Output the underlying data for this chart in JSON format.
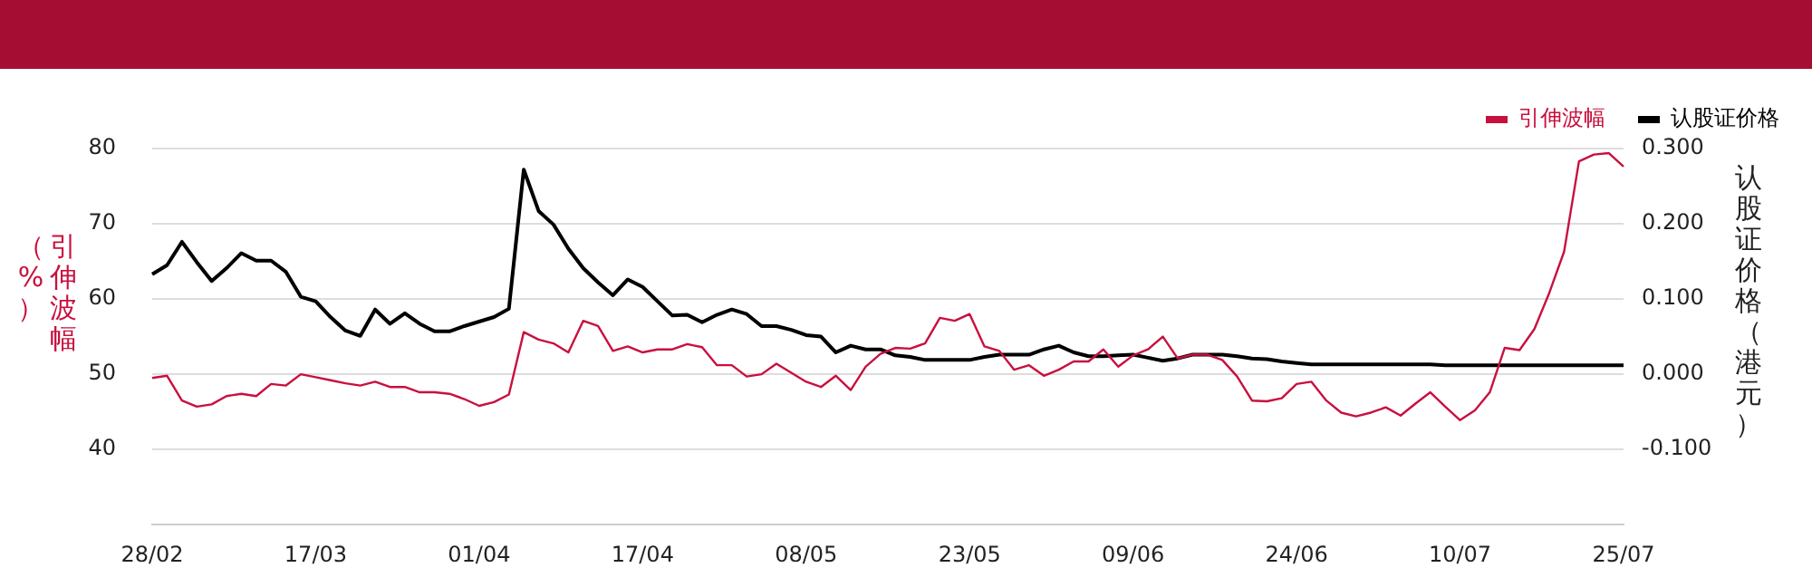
{
  "chart_data": {
    "type": "line",
    "ylabel": "引伸波幅（%）",
    "y2label": "认股证价格（港元）",
    "categories": [
      "28/02",
      null,
      null,
      null,
      null,
      null,
      null,
      null,
      null,
      null,
      null,
      "17/03",
      null,
      null,
      null,
      null,
      null,
      null,
      null,
      null,
      null,
      null,
      "01/04",
      null,
      null,
      null,
      null,
      null,
      null,
      null,
      null,
      null,
      null,
      "17/04",
      null,
      null,
      null,
      null,
      null,
      null,
      null,
      null,
      null,
      null,
      "08/05",
      null,
      null,
      null,
      null,
      null,
      null,
      null,
      null,
      null,
      null,
      "23/05",
      null,
      null,
      null,
      null,
      null,
      null,
      null,
      null,
      null,
      null,
      "09/06",
      null,
      null,
      null,
      null,
      null,
      null,
      null,
      null,
      null,
      null,
      "24/06",
      null,
      null,
      null,
      null,
      null,
      null,
      null,
      null,
      null,
      null,
      "10/07",
      null,
      null,
      null,
      null,
      null,
      null,
      null,
      null,
      null,
      null,
      "25/07"
    ],
    "series": [
      {
        "name": "引伸波幅",
        "color": "#c8103e",
        "values": [
          49.5,
          49.8,
          46.5,
          45.7,
          46.0,
          47.1,
          47.4,
          47.1,
          48.7,
          48.5,
          50.0,
          49.6,
          49.2,
          48.8,
          48.5,
          49.0,
          48.3,
          48.3,
          47.6,
          47.6,
          47.4,
          46.7,
          45.8,
          46.3,
          47.3,
          55.6,
          54.6,
          54.1,
          52.9,
          57.1,
          56.4,
          53.1,
          53.7,
          52.9,
          53.3,
          53.3,
          54.0,
          53.6,
          51.2,
          51.2,
          49.7,
          50.0,
          51.4,
          50.2,
          49.0,
          48.3,
          49.8,
          47.9,
          51.0,
          52.7,
          53.5,
          53.4,
          54.1,
          57.5,
          57.1,
          58.0,
          53.7,
          53.1,
          50.6,
          51.2,
          49.8,
          50.6,
          51.7,
          51.7,
          53.3,
          51.0,
          52.5,
          53.3,
          55.0,
          52.1,
          52.6,
          52.6,
          51.9,
          49.7,
          46.5,
          46.4,
          46.8,
          48.7,
          49.0,
          46.5,
          44.9,
          44.4,
          44.9,
          45.6,
          44.5,
          46.1,
          47.6,
          45.7,
          43.9,
          45.2,
          47.6,
          53.5,
          53.2,
          56.0,
          60.8,
          66.3,
          78.3,
          79.2,
          79.4,
          77.6
        ]
      },
      {
        "name": "认股证价格",
        "color": "#000000",
        "axis": "y2",
        "values": [
          0.133,
          0.145,
          0.176,
          0.149,
          0.124,
          0.141,
          0.161,
          0.151,
          0.151,
          0.136,
          0.103,
          0.097,
          0.076,
          0.058,
          0.051,
          0.086,
          0.067,
          0.081,
          0.067,
          0.057,
          0.057,
          0.064,
          0.07,
          0.076,
          0.087,
          0.272,
          0.217,
          0.199,
          0.167,
          0.141,
          0.122,
          0.105,
          0.126,
          0.116,
          0.097,
          0.078,
          0.079,
          0.069,
          0.079,
          0.086,
          0.08,
          0.064,
          0.064,
          0.059,
          0.052,
          0.05,
          0.029,
          0.038,
          0.033,
          0.033,
          0.025,
          0.023,
          0.019,
          0.019,
          0.019,
          0.019,
          0.023,
          0.026,
          0.026,
          0.026,
          0.033,
          0.038,
          0.029,
          0.024,
          0.024,
          0.025,
          0.026,
          0.022,
          0.018,
          0.021,
          0.026,
          0.026,
          0.026,
          0.024,
          0.021,
          0.02,
          0.017,
          0.015,
          0.013,
          0.013,
          0.013,
          0.013,
          0.013,
          0.013,
          0.013,
          0.013,
          0.013,
          0.012,
          0.012,
          0.012,
          0.012,
          0.012,
          0.012,
          0.012,
          0.012,
          0.012,
          0.012,
          0.012,
          0.012,
          0.012
        ]
      }
    ],
    "ylim": [
      30,
      80
    ],
    "yticks": [
      40,
      50,
      60,
      70,
      80
    ],
    "y2lim": [
      -0.2,
      0.3
    ],
    "y2ticks": [
      {
        "value": -0.1,
        "label": "-0.100"
      },
      {
        "value": 0,
        "label": "0.000"
      },
      {
        "value": 0.1,
        "label": "0.100"
      },
      {
        "value": 0.2,
        "label": "0.200"
      },
      {
        "value": 0.3,
        "label": "0.300"
      }
    ],
    "grid": "y",
    "legend": "top right"
  }
}
